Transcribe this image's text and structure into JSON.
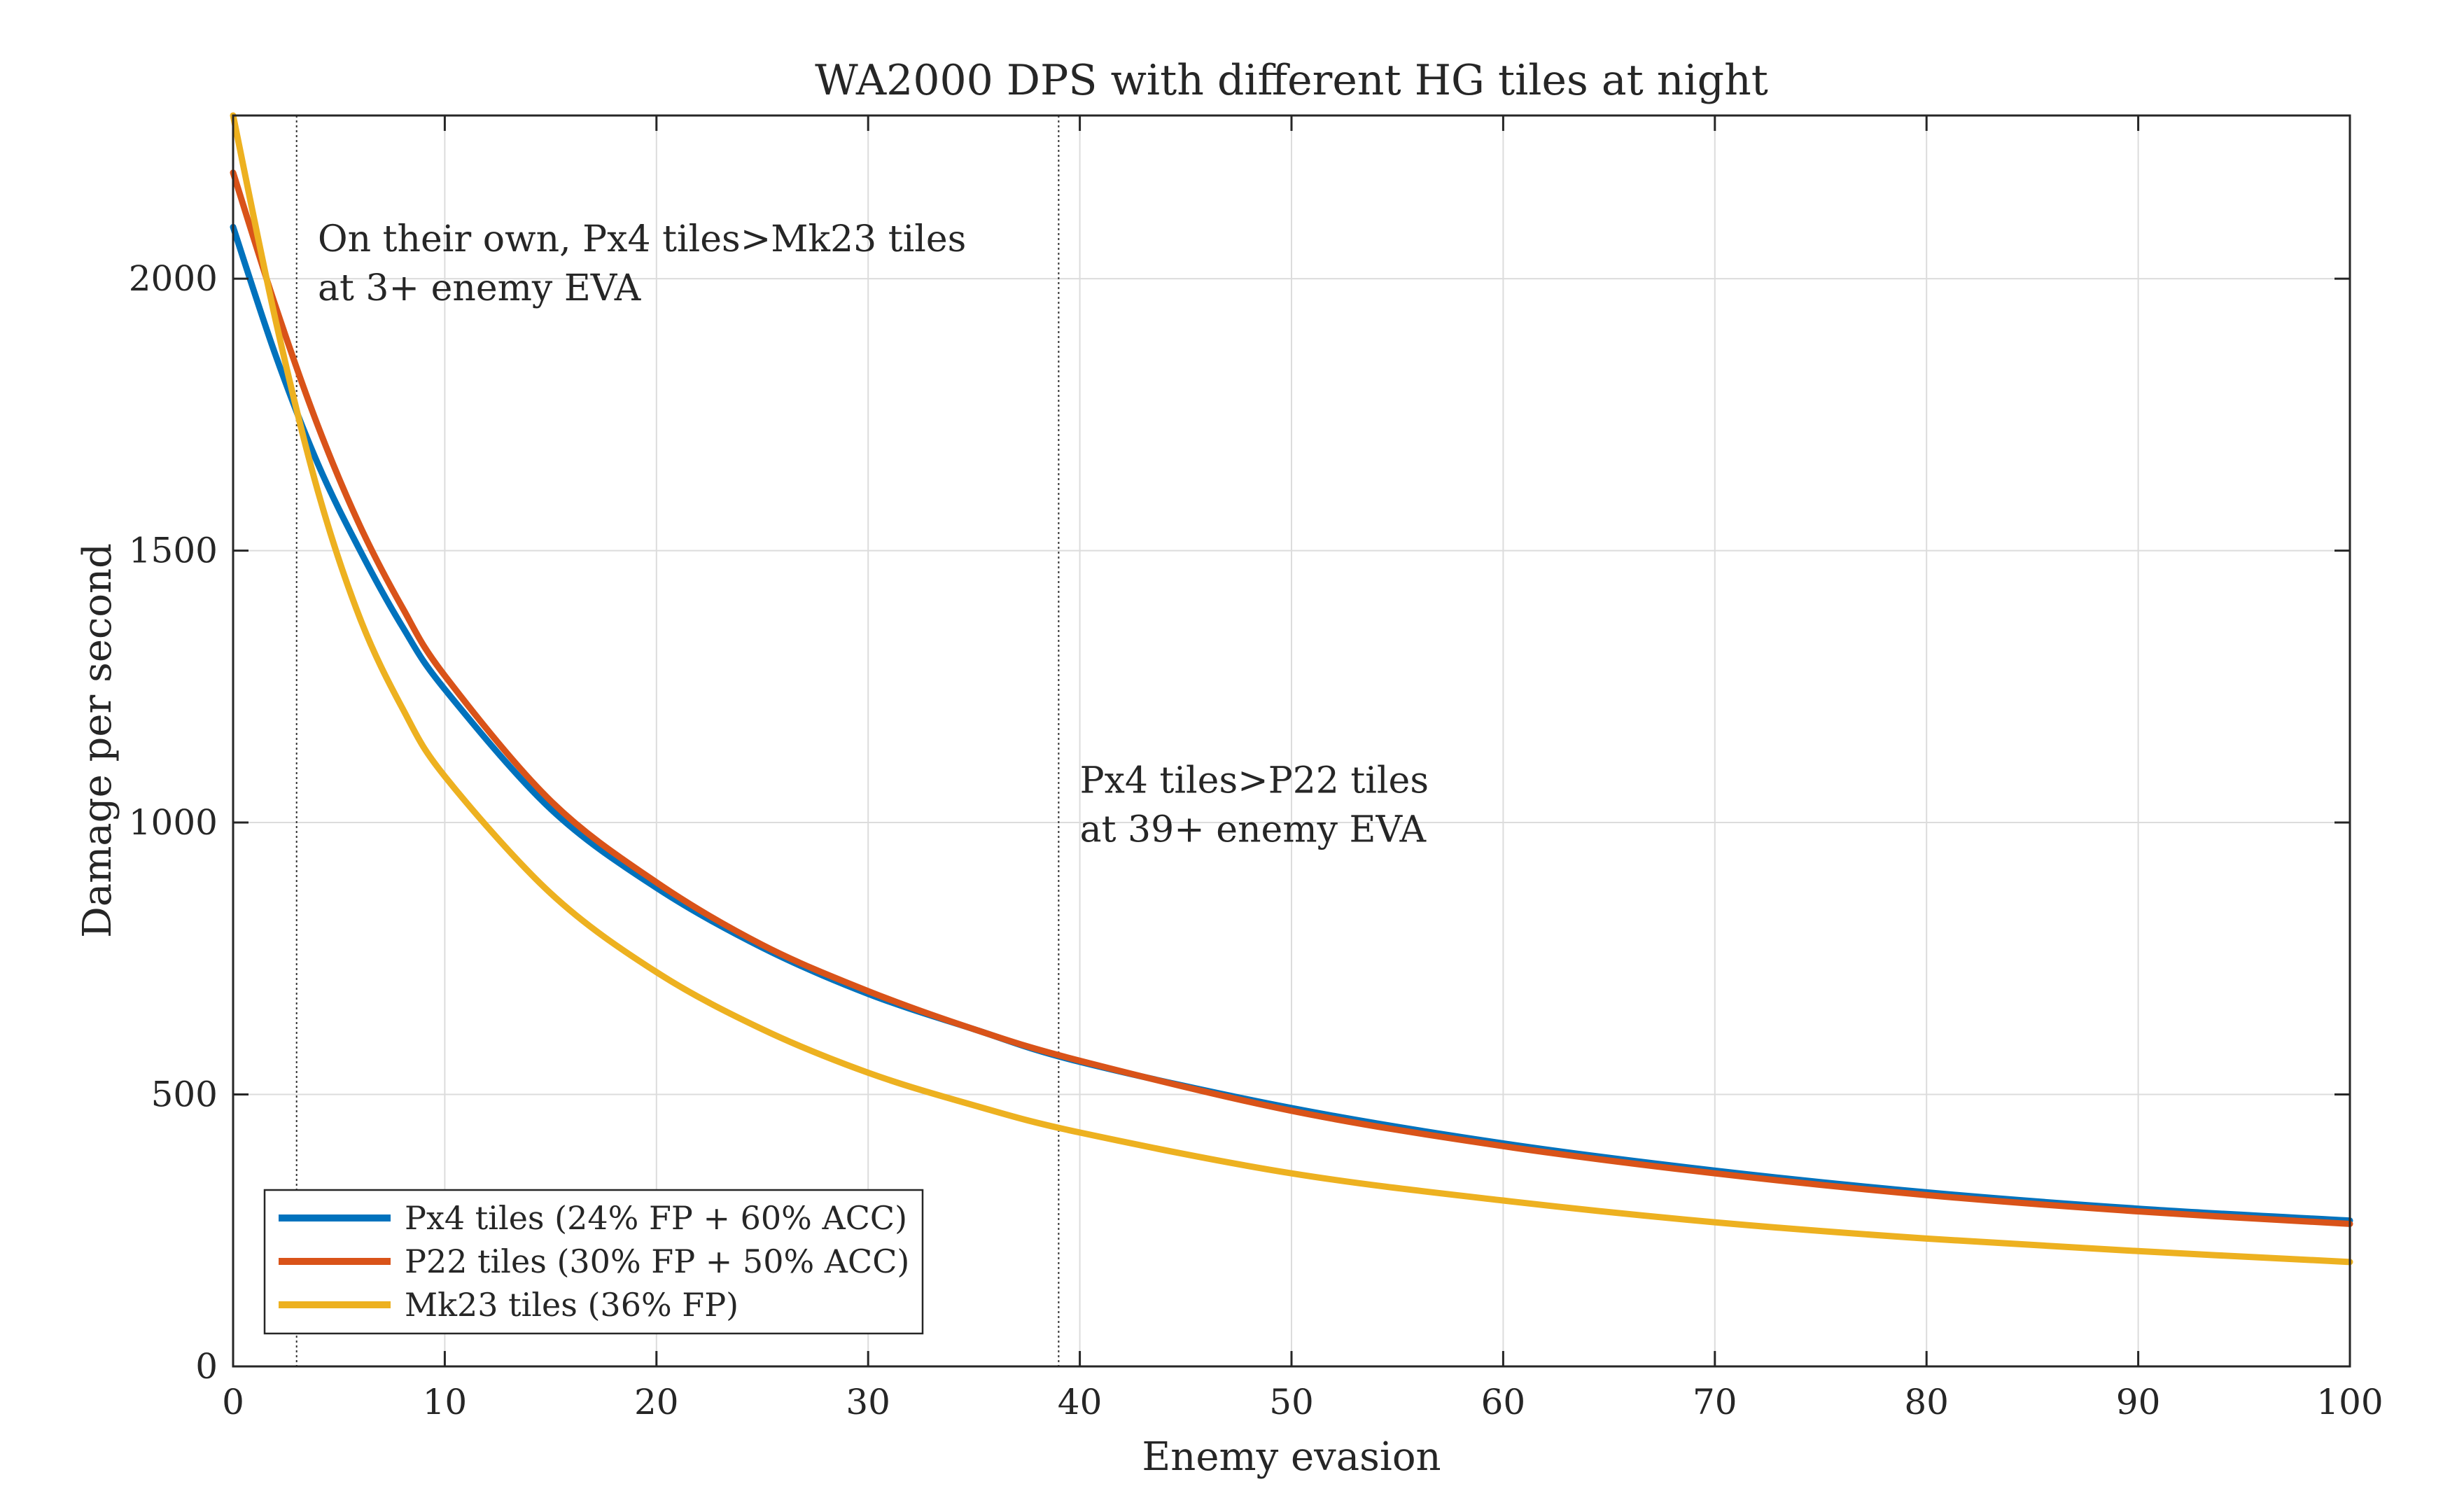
{
  "chart_data": {
    "type": "line",
    "title": "WA2000 DPS with different HG tiles at night",
    "xlabel": "Enemy evasion",
    "ylabel": "Damage per second",
    "xlim": [
      0,
      100
    ],
    "ylim": [
      0,
      2300
    ],
    "xticks": [
      0,
      10,
      20,
      30,
      40,
      50,
      60,
      70,
      80,
      90,
      100
    ],
    "yticks": [
      0,
      500,
      1000,
      1500,
      2000
    ],
    "grid": true,
    "legend_position": "bottom-left",
    "x": [
      0,
      2,
      4,
      6,
      8,
      10,
      15,
      20,
      25,
      30,
      35,
      40,
      50,
      60,
      70,
      80,
      90,
      100
    ],
    "series": [
      {
        "name": "Px4 tiles (24% FP + 60% ACC)",
        "color": "#0072BD",
        "values": [
          2095,
          1860,
          1660,
          1500,
          1360,
          1245,
          1025,
          880,
          770,
          685,
          620,
          560,
          475,
          410,
          360,
          320,
          290,
          268
        ]
      },
      {
        "name": "P22 tiles (30% FP + 50% ACC)",
        "color": "#D95319",
        "values": [
          2195,
          1950,
          1730,
          1545,
          1395,
          1270,
          1040,
          890,
          775,
          690,
          620,
          562,
          470,
          405,
          355,
          315,
          285,
          262
        ]
      },
      {
        "name": "Mk23 tiles (36% FP)",
        "color": "#EDB120",
        "values": [
          2300,
          1925,
          1610,
          1375,
          1210,
          1085,
          870,
          725,
          620,
          540,
          480,
          430,
          355,
          305,
          265,
          235,
          212,
          192
        ]
      }
    ],
    "vlines": [
      3,
      39
    ],
    "annotations": [
      {
        "x": 4,
        "y": 2050,
        "lines": [
          "On their own, Px4 tiles>Mk23 tiles",
          "at 3+ enemy EVA"
        ]
      },
      {
        "x": 40,
        "y": 1055,
        "lines": [
          "Px4 tiles>P22 tiles",
          "at 39+ enemy EVA"
        ]
      }
    ]
  }
}
